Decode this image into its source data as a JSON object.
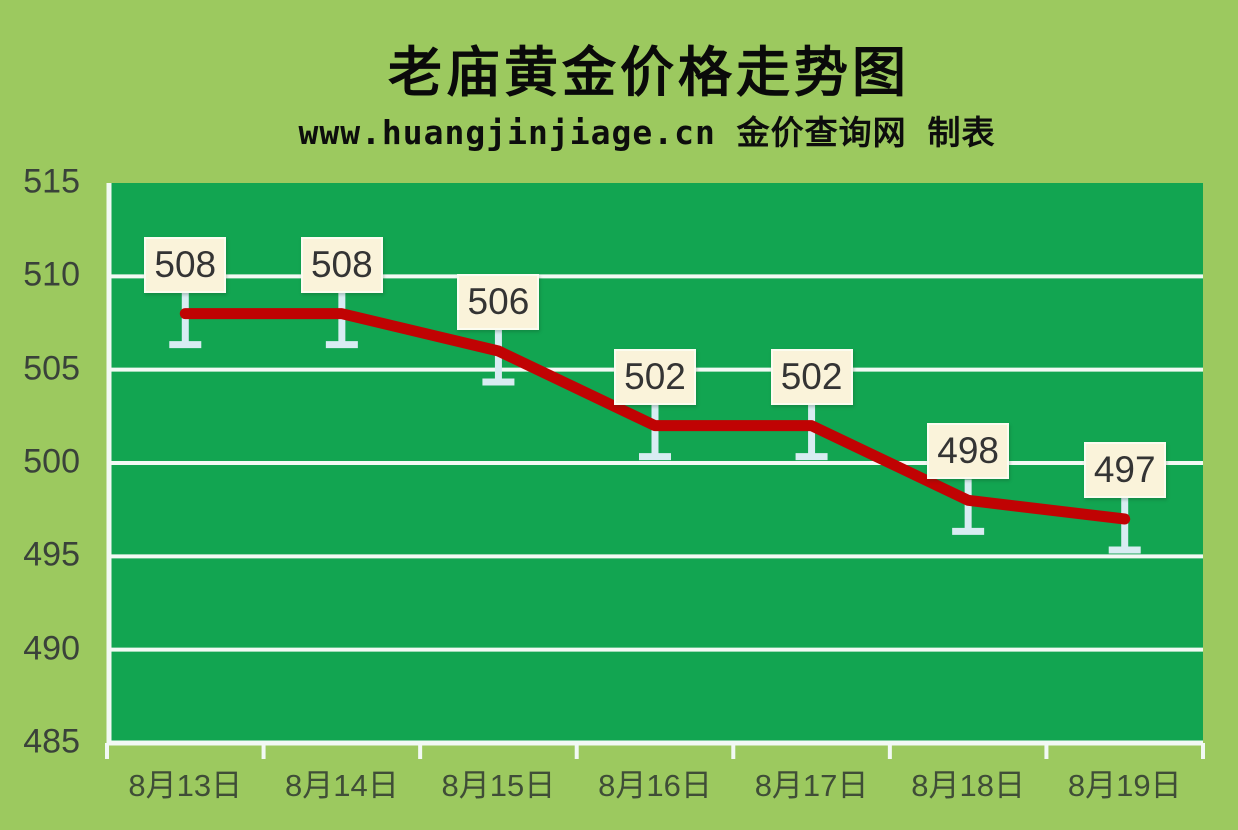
{
  "title": "老庙黄金价格走势图",
  "subtitle": "www.huangjinjiage.cn 金价查询网 制表",
  "colors": {
    "background": "#9cc95f",
    "plot_background": "#12a551",
    "gridline": "#f2f9f4",
    "axis_tick": "#f2f9f4",
    "price_line": "#c00303",
    "leader_stem": "#d8ecf2",
    "label_box_background": "#faf3da",
    "label_text": "#343434",
    "axis_text": "#3f4d37"
  },
  "chart_data": {
    "type": "line",
    "title": "老庙黄金价格走势图",
    "subtitle": "www.huangjinjiage.cn 金价查询网 制表",
    "categories": [
      "8月13日",
      "8月14日",
      "8月15日",
      "8月16日",
      "8月17日",
      "8月18日",
      "8月19日"
    ],
    "values": [
      508,
      508,
      506,
      502,
      502,
      498,
      497
    ],
    "series_name": "老庙黄金价格",
    "xlabel": "",
    "ylabel": "",
    "ylim": [
      485,
      515
    ],
    "y_ticks": [
      515,
      510,
      505,
      500,
      495,
      490,
      485
    ],
    "grid": "horizontal",
    "legend": "none",
    "data_labels_shown": true
  }
}
